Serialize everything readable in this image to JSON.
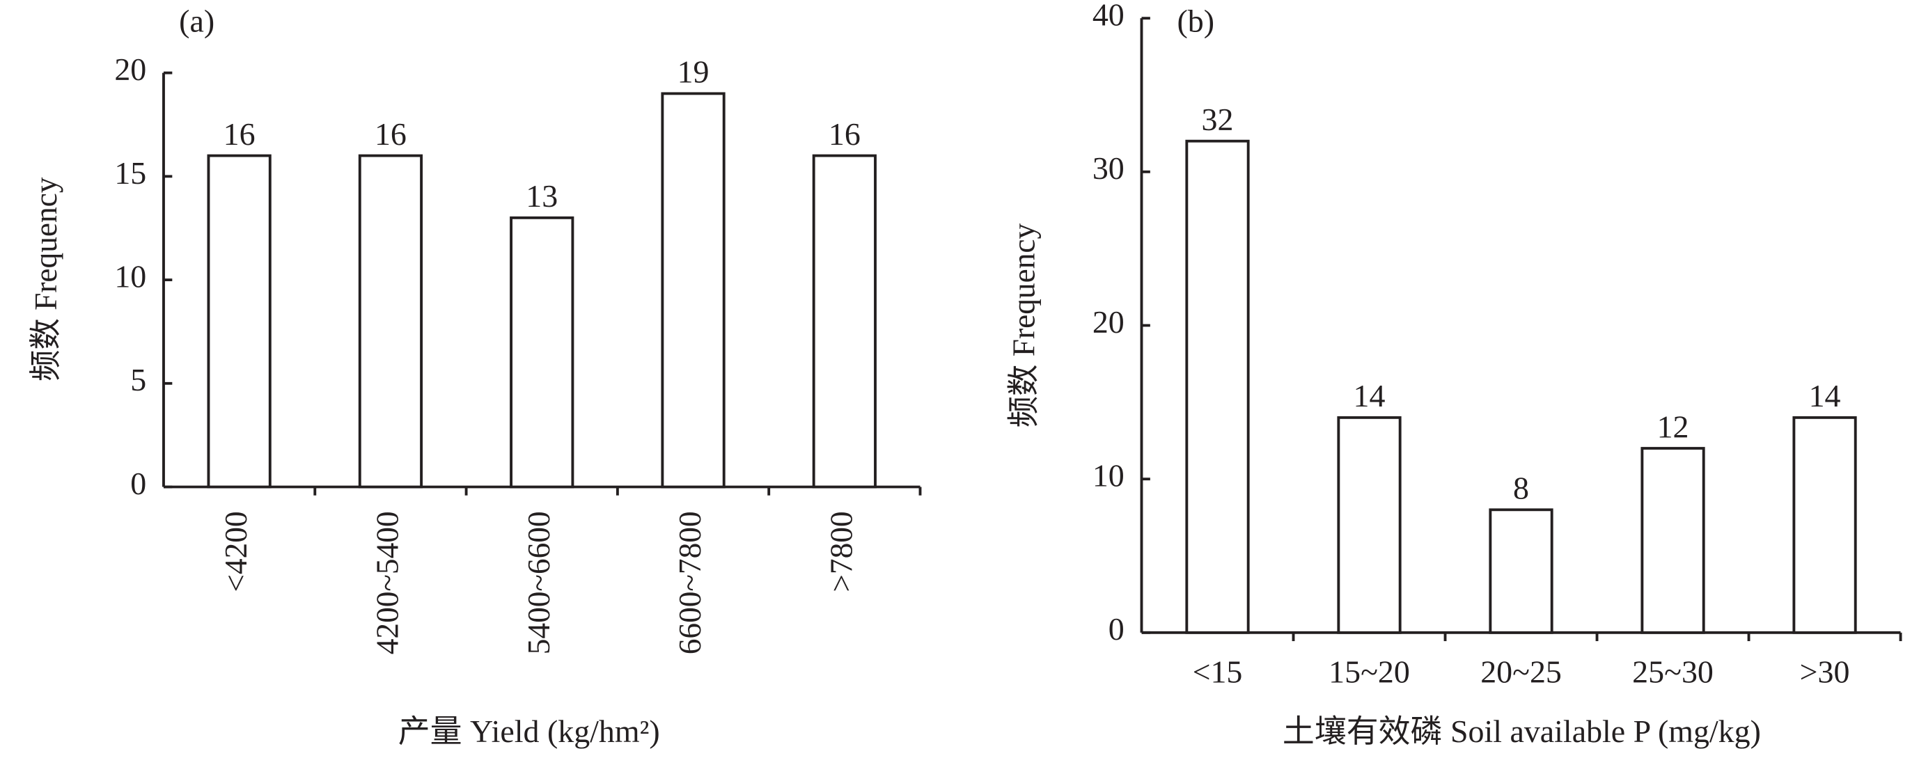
{
  "chart_data": [
    {
      "type": "bar",
      "title": "(a)",
      "x_label": "产量 Yield (kg/hm²)",
      "y_label": "频数 Frequency",
      "categories": [
        "<4200",
        "4200~5400",
        "5400~6600",
        "6600~7800",
        ">7800"
      ],
      "values": [
        16,
        16,
        13,
        19,
        16
      ],
      "color": "#ffffff",
      "ylim": [
        0,
        20
      ],
      "yticks": [
        0,
        5,
        10,
        15,
        20
      ],
      "rotate_categories": true
    },
    {
      "type": "bar",
      "title": "(b)",
      "x_label": "土壤有效磷 Soil available P (mg/kg)",
      "y_label": "频数 Frequency",
      "categories": [
        "<15",
        "15~20",
        "20~25",
        "25~30",
        ">30"
      ],
      "values": [
        32,
        14,
        8,
        12,
        14
      ],
      "color": "#ffffff",
      "ylim": [
        0,
        40
      ],
      "yticks": [
        0,
        10,
        20,
        30,
        40
      ],
      "rotate_categories": false
    }
  ]
}
